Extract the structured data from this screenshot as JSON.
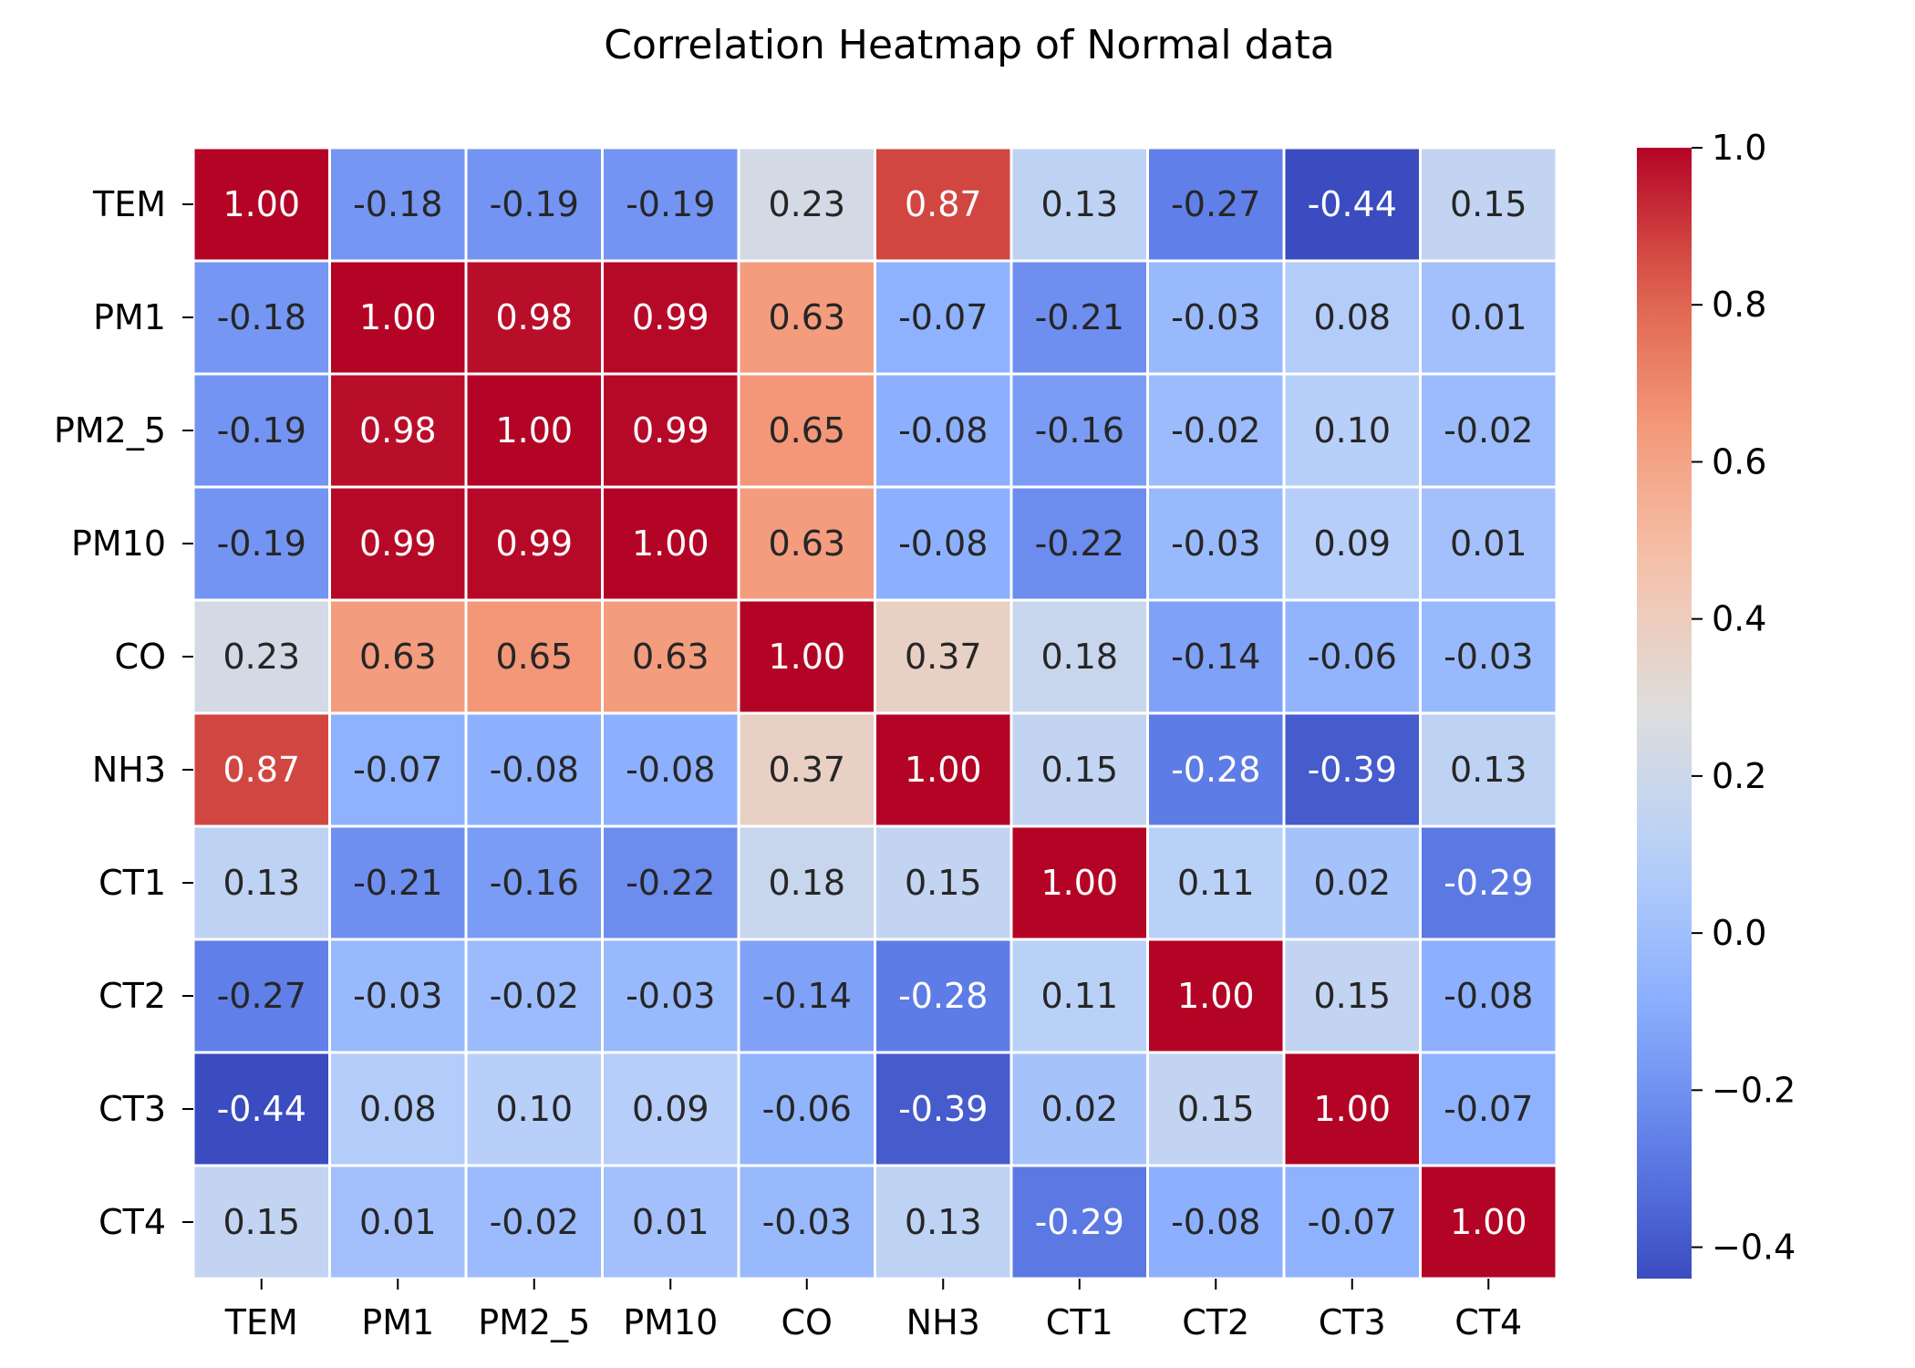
{
  "chart_data": {
    "type": "heatmap",
    "title": "Correlation Heatmap of Normal data",
    "xlabel": "",
    "ylabel": "",
    "x_categories": [
      "TEM",
      "PM1",
      "PM2_5",
      "PM10",
      "CO",
      "NH3",
      "CT1",
      "CT2",
      "CT3",
      "CT4"
    ],
    "y_categories": [
      "TEM",
      "PM1",
      "PM2_5",
      "PM10",
      "CO",
      "NH3",
      "CT1",
      "CT2",
      "CT3",
      "CT4"
    ],
    "values": [
      [
        1.0,
        -0.18,
        -0.19,
        -0.19,
        0.23,
        0.87,
        0.13,
        -0.27,
        -0.44,
        0.15
      ],
      [
        -0.18,
        1.0,
        0.98,
        0.99,
        0.63,
        -0.07,
        -0.21,
        -0.03,
        0.08,
        0.01
      ],
      [
        -0.19,
        0.98,
        1.0,
        0.99,
        0.65,
        -0.08,
        -0.16,
        -0.02,
        0.1,
        -0.02
      ],
      [
        -0.19,
        0.99,
        0.99,
        1.0,
        0.63,
        -0.08,
        -0.22,
        -0.03,
        0.09,
        0.01
      ],
      [
        0.23,
        0.63,
        0.65,
        0.63,
        1.0,
        0.37,
        0.18,
        -0.14,
        -0.06,
        -0.03
      ],
      [
        0.87,
        -0.07,
        -0.08,
        -0.08,
        0.37,
        1.0,
        0.15,
        -0.28,
        -0.39,
        0.13
      ],
      [
        0.13,
        -0.21,
        -0.16,
        -0.22,
        0.18,
        0.15,
        1.0,
        0.11,
        0.02,
        -0.29
      ],
      [
        -0.27,
        -0.03,
        -0.02,
        -0.03,
        -0.14,
        -0.28,
        0.11,
        1.0,
        0.15,
        -0.08
      ],
      [
        -0.44,
        0.08,
        0.1,
        0.09,
        -0.06,
        -0.39,
        0.02,
        0.15,
        1.0,
        -0.07
      ],
      [
        0.15,
        0.01,
        -0.02,
        0.01,
        -0.03,
        0.13,
        -0.29,
        -0.08,
        -0.07,
        1.0
      ]
    ],
    "value_format": "2 decimals",
    "colormap": "coolwarm",
    "color_range": [
      -0.44,
      1.0
    ],
    "colorbar": {
      "ticks": [
        1.0,
        0.8,
        0.6,
        0.4,
        0.2,
        0.0,
        -0.2,
        -0.4
      ],
      "tick_labels": [
        "1.0",
        "0.8",
        "0.6",
        "0.4",
        "0.2",
        "0.0",
        "−0.2",
        "−0.4"
      ]
    },
    "grid": false,
    "cell_border_color": "#ffffff",
    "legend": "colorbar right"
  }
}
